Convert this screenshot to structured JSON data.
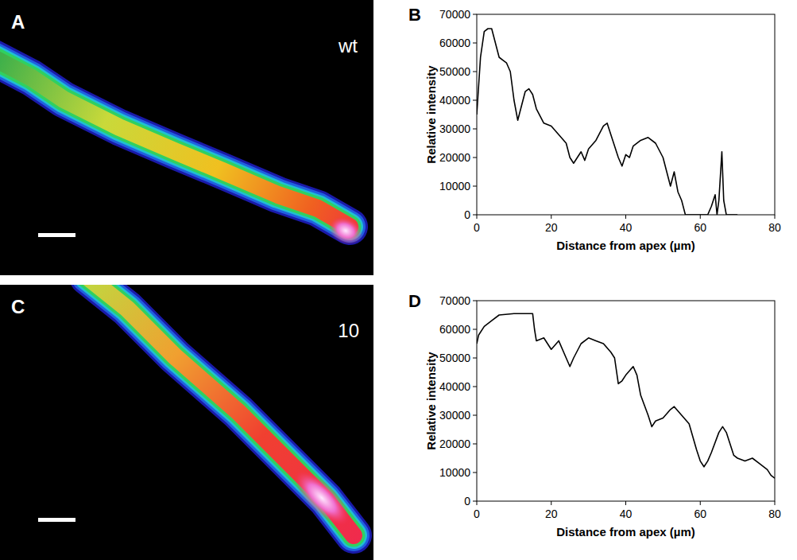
{
  "images": [
    {
      "panel_label": "A",
      "label": "wt"
    },
    {
      "panel_label": "C",
      "label": "10"
    }
  ],
  "chart_data": [
    {
      "type": "line",
      "panel_label": "B",
      "x_label": "Distance from apex (µm)",
      "y_label": "Relative intensity",
      "xlim": [
        0,
        80
      ],
      "xticks": [
        0,
        20,
        40,
        60,
        80
      ],
      "ylim": [
        0,
        70000
      ],
      "yticks": [
        0,
        10000,
        20000,
        30000,
        40000,
        50000,
        60000,
        70000
      ],
      "x": [
        0,
        1,
        2,
        3,
        4,
        5,
        6,
        7,
        8,
        9,
        10,
        11,
        12,
        13,
        14,
        15,
        16,
        18,
        20,
        22,
        24,
        25,
        26,
        28,
        29,
        30,
        32,
        34,
        35,
        36,
        38,
        39,
        40,
        41,
        42,
        44,
        46,
        48,
        50,
        52,
        53,
        54,
        55,
        56,
        57,
        60,
        62,
        63,
        64,
        64.5,
        65,
        65.8,
        66.3,
        67,
        70
      ],
      "series": [
        {
          "color": "#000000",
          "values": [
            35000,
            55000,
            64000,
            65000,
            65000,
            60000,
            55000,
            54000,
            53000,
            50000,
            40000,
            33000,
            38000,
            43000,
            44000,
            42000,
            37000,
            32000,
            31000,
            28000,
            25000,
            20000,
            18000,
            22000,
            19000,
            23000,
            26000,
            31000,
            32000,
            28000,
            20000,
            17000,
            21000,
            20000,
            24000,
            26000,
            27000,
            25000,
            20000,
            10000,
            15000,
            8000,
            5000,
            0,
            0,
            0,
            0,
            3000,
            7000,
            0,
            5000,
            22000,
            5000,
            0,
            0
          ]
        }
      ]
    },
    {
      "type": "line",
      "panel_label": "D",
      "x_label": "Distance from apex (µm)",
      "y_label": "Relative intensity",
      "xlim": [
        0,
        80
      ],
      "xticks": [
        0,
        20,
        40,
        60,
        80
      ],
      "ylim": [
        0,
        70000
      ],
      "yticks": [
        0,
        10000,
        20000,
        30000,
        40000,
        50000,
        60000,
        70000
      ],
      "x": [
        0,
        0.5,
        2,
        4,
        6,
        10,
        15,
        15.5,
        16,
        18,
        20,
        22,
        24,
        25,
        26,
        28,
        30,
        32,
        34,
        36,
        37,
        38,
        39,
        40,
        42,
        43,
        44,
        46,
        47,
        48,
        50,
        52,
        53,
        55,
        57,
        59,
        60,
        61,
        62,
        63,
        65,
        66,
        67,
        69,
        70,
        72,
        74,
        76,
        78,
        79,
        80
      ],
      "series": [
        {
          "color": "#000000",
          "values": [
            55000,
            58000,
            61000,
            63000,
            65000,
            65500,
            65500,
            60000,
            56000,
            57000,
            53000,
            56000,
            50000,
            47000,
            50000,
            55000,
            57000,
            56000,
            55000,
            52000,
            50000,
            41000,
            42000,
            44000,
            47000,
            44000,
            37000,
            30000,
            26000,
            28000,
            29000,
            32000,
            33000,
            30000,
            27000,
            18000,
            14000,
            12000,
            14000,
            17000,
            24000,
            26000,
            24000,
            16000,
            15000,
            14000,
            15000,
            13000,
            11000,
            9000,
            8000
          ]
        }
      ]
    }
  ]
}
